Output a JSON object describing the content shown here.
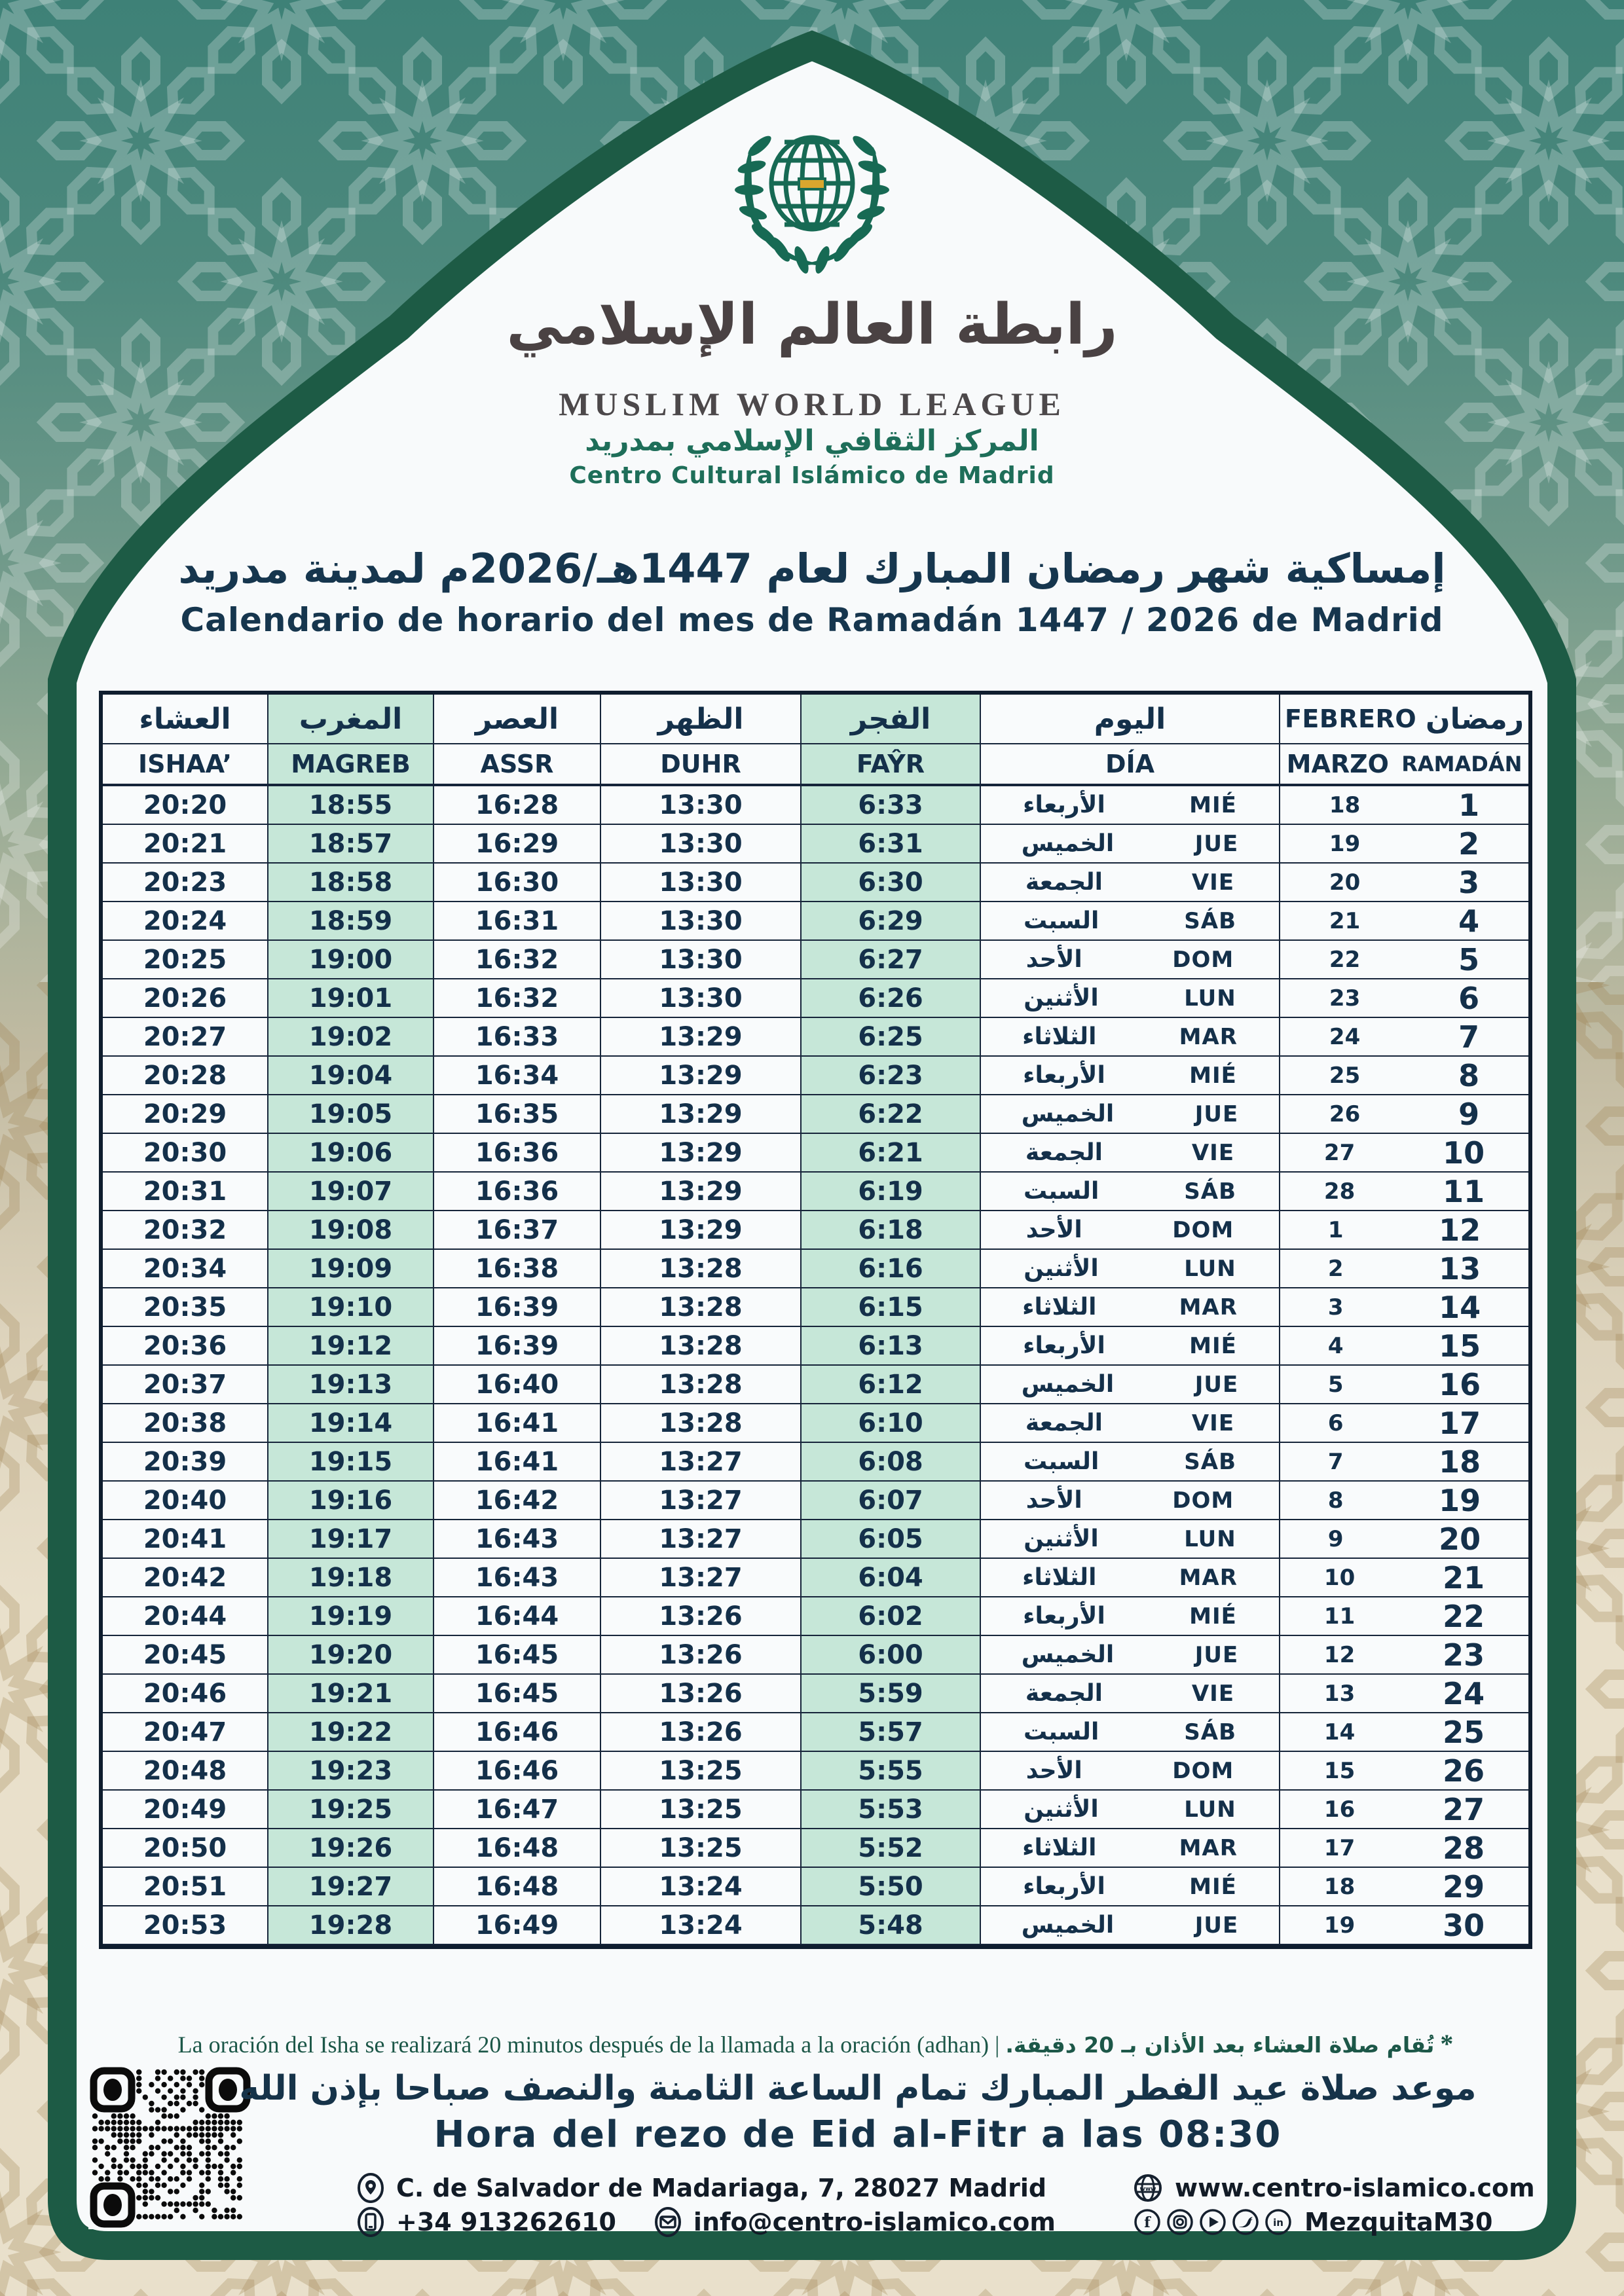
{
  "org": {
    "calligraphy_ar": "رابطة العالم الإسلامي",
    "name_en": "MUSLIM WORLD LEAGUE",
    "center_ar": "المركز الثقافي الإسلامي بمدريد",
    "center_es": "Centro Cultural Islámico de Madrid"
  },
  "title": {
    "ar": "إمساكية شهر رمضان المبارك لعام 1447هـ/2026م لمدينة مدريد",
    "es": "Calendario de horario del mes de Ramadán 1447 / 2026  de Madrid"
  },
  "table": {
    "headers": {
      "ishaa_ar": "العشاء",
      "magreb_ar": "المغرب",
      "assr_ar": "العصر",
      "duhr_ar": "الظهر",
      "fayr_ar": "الفجر",
      "day_ar": "اليوم",
      "month_top": "FEBRERO",
      "ramadan_ar": "رمضان",
      "ishaa_la": "ISHAA’",
      "magreb_la": "MAGREB",
      "assr_la": "ASSR",
      "duhr_la": "DUHR",
      "fayr_la": "FAŶR",
      "day_la": "DÍA",
      "month_bottom": "MARZO",
      "ramadan_la": "RAMADÁN"
    },
    "rows": [
      {
        "ishaa": "20:20",
        "magreb": "18:55",
        "assr": "16:28",
        "duhr": "13:30",
        "fayr": "6:33",
        "day_ar": "الأربعاء",
        "day_es": "MIÉ",
        "date": "18",
        "ramadan": "1"
      },
      {
        "ishaa": "20:21",
        "magreb": "18:57",
        "assr": "16:29",
        "duhr": "13:30",
        "fayr": "6:31",
        "day_ar": "الخميس",
        "day_es": "JUE",
        "date": "19",
        "ramadan": "2"
      },
      {
        "ishaa": "20:23",
        "magreb": "18:58",
        "assr": "16:30",
        "duhr": "13:30",
        "fayr": "6:30",
        "day_ar": "الجمعة",
        "day_es": "VIE",
        "date": "20",
        "ramadan": "3"
      },
      {
        "ishaa": "20:24",
        "magreb": "18:59",
        "assr": "16:31",
        "duhr": "13:30",
        "fayr": "6:29",
        "day_ar": "السبت",
        "day_es": "SÁB",
        "date": "21",
        "ramadan": "4"
      },
      {
        "ishaa": "20:25",
        "magreb": "19:00",
        "assr": "16:32",
        "duhr": "13:30",
        "fayr": "6:27",
        "day_ar": "الأحد",
        "day_es": "DOM",
        "date": "22",
        "ramadan": "5"
      },
      {
        "ishaa": "20:26",
        "magreb": "19:01",
        "assr": "16:32",
        "duhr": "13:30",
        "fayr": "6:26",
        "day_ar": "الأثنين",
        "day_es": "LUN",
        "date": "23",
        "ramadan": "6"
      },
      {
        "ishaa": "20:27",
        "magreb": "19:02",
        "assr": "16:33",
        "duhr": "13:29",
        "fayr": "6:25",
        "day_ar": "الثلاثاء",
        "day_es": "MAR",
        "date": "24",
        "ramadan": "7"
      },
      {
        "ishaa": "20:28",
        "magreb": "19:04",
        "assr": "16:34",
        "duhr": "13:29",
        "fayr": "6:23",
        "day_ar": "الأربعاء",
        "day_es": "MIÉ",
        "date": "25",
        "ramadan": "8"
      },
      {
        "ishaa": "20:29",
        "magreb": "19:05",
        "assr": "16:35",
        "duhr": "13:29",
        "fayr": "6:22",
        "day_ar": "الخميس",
        "day_es": "JUE",
        "date": "26",
        "ramadan": "9"
      },
      {
        "ishaa": "20:30",
        "magreb": "19:06",
        "assr": "16:36",
        "duhr": "13:29",
        "fayr": "6:21",
        "day_ar": "الجمعة",
        "day_es": "VIE",
        "date": "27",
        "ramadan": "10"
      },
      {
        "ishaa": "20:31",
        "magreb": "19:07",
        "assr": "16:36",
        "duhr": "13:29",
        "fayr": "6:19",
        "day_ar": "السبت",
        "day_es": "SÁB",
        "date": "28",
        "ramadan": "11"
      },
      {
        "ishaa": "20:32",
        "magreb": "19:08",
        "assr": "16:37",
        "duhr": "13:29",
        "fayr": "6:18",
        "day_ar": "الأحد",
        "day_es": "DOM",
        "date": "1",
        "ramadan": "12"
      },
      {
        "ishaa": "20:34",
        "magreb": "19:09",
        "assr": "16:38",
        "duhr": "13:28",
        "fayr": "6:16",
        "day_ar": "الأثنين",
        "day_es": "LUN",
        "date": "2",
        "ramadan": "13"
      },
      {
        "ishaa": "20:35",
        "magreb": "19:10",
        "assr": "16:39",
        "duhr": "13:28",
        "fayr": "6:15",
        "day_ar": "الثلاثاء",
        "day_es": "MAR",
        "date": "3",
        "ramadan": "14"
      },
      {
        "ishaa": "20:36",
        "magreb": "19:12",
        "assr": "16:39",
        "duhr": "13:28",
        "fayr": "6:13",
        "day_ar": "الأربعاء",
        "day_es": "MIÉ",
        "date": "4",
        "ramadan": "15"
      },
      {
        "ishaa": "20:37",
        "magreb": "19:13",
        "assr": "16:40",
        "duhr": "13:28",
        "fayr": "6:12",
        "day_ar": "الخميس",
        "day_es": "JUE",
        "date": "5",
        "ramadan": "16"
      },
      {
        "ishaa": "20:38",
        "magreb": "19:14",
        "assr": "16:41",
        "duhr": "13:28",
        "fayr": "6:10",
        "day_ar": "الجمعة",
        "day_es": "VIE",
        "date": "6",
        "ramadan": "17"
      },
      {
        "ishaa": "20:39",
        "magreb": "19:15",
        "assr": "16:41",
        "duhr": "13:27",
        "fayr": "6:08",
        "day_ar": "السبت",
        "day_es": "SÁB",
        "date": "7",
        "ramadan": "18"
      },
      {
        "ishaa": "20:40",
        "magreb": "19:16",
        "assr": "16:42",
        "duhr": "13:27",
        "fayr": "6:07",
        "day_ar": "الأحد",
        "day_es": "DOM",
        "date": "8",
        "ramadan": "19"
      },
      {
        "ishaa": "20:41",
        "magreb": "19:17",
        "assr": "16:43",
        "duhr": "13:27",
        "fayr": "6:05",
        "day_ar": "الأثنين",
        "day_es": "LUN",
        "date": "9",
        "ramadan": "20"
      },
      {
        "ishaa": "20:42",
        "magreb": "19:18",
        "assr": "16:43",
        "duhr": "13:27",
        "fayr": "6:04",
        "day_ar": "الثلاثاء",
        "day_es": "MAR",
        "date": "10",
        "ramadan": "21"
      },
      {
        "ishaa": "20:44",
        "magreb": "19:19",
        "assr": "16:44",
        "duhr": "13:26",
        "fayr": "6:02",
        "day_ar": "الأربعاء",
        "day_es": "MIÉ",
        "date": "11",
        "ramadan": "22"
      },
      {
        "ishaa": "20:45",
        "magreb": "19:20",
        "assr": "16:45",
        "duhr": "13:26",
        "fayr": "6:00",
        "day_ar": "الخميس",
        "day_es": "JUE",
        "date": "12",
        "ramadan": "23"
      },
      {
        "ishaa": "20:46",
        "magreb": "19:21",
        "assr": "16:45",
        "duhr": "13:26",
        "fayr": "5:59",
        "day_ar": "الجمعة",
        "day_es": "VIE",
        "date": "13",
        "ramadan": "24"
      },
      {
        "ishaa": "20:47",
        "magreb": "19:22",
        "assr": "16:46",
        "duhr": "13:26",
        "fayr": "5:57",
        "day_ar": "السبت",
        "day_es": "SÁB",
        "date": "14",
        "ramadan": "25"
      },
      {
        "ishaa": "20:48",
        "magreb": "19:23",
        "assr": "16:46",
        "duhr": "13:25",
        "fayr": "5:55",
        "day_ar": "الأحد",
        "day_es": "DOM",
        "date": "15",
        "ramadan": "26"
      },
      {
        "ishaa": "20:49",
        "magreb": "19:25",
        "assr": "16:47",
        "duhr": "13:25",
        "fayr": "5:53",
        "day_ar": "الأثنين",
        "day_es": "LUN",
        "date": "16",
        "ramadan": "27"
      },
      {
        "ishaa": "20:50",
        "magreb": "19:26",
        "assr": "16:48",
        "duhr": "13:25",
        "fayr": "5:52",
        "day_ar": "الثلاثاء",
        "day_es": "MAR",
        "date": "17",
        "ramadan": "28"
      },
      {
        "ishaa": "20:51",
        "magreb": "19:27",
        "assr": "16:48",
        "duhr": "13:24",
        "fayr": "5:50",
        "day_ar": "الأربعاء",
        "day_es": "MIÉ",
        "date": "18",
        "ramadan": "29"
      },
      {
        "ishaa": "20:53",
        "magreb": "19:28",
        "assr": "16:49",
        "duhr": "13:24",
        "fayr": "5:48",
        "day_ar": "الخميس",
        "day_es": "JUE",
        "date": "19",
        "ramadan": "30"
      }
    ]
  },
  "footnote": {
    "star": "*",
    "ar": "تُقام صلاة العشاء بعد الأذان بـ 20 دقيقة.",
    "separator": "|",
    "es": "La oración del Isha se realizará 20 minutos después de la llamada a la oración  (adhan)"
  },
  "eid": {
    "ar": "موعد صلاة عيد الفطر المبارك  تمام الساعة الثامنة والنصف صباحا بإذن الله",
    "es": "Hora del rezo de Eid al-Fitr a las 08:30"
  },
  "contact": {
    "address": "C. de Salvador de Madariaga, 7, 28027 Madrid",
    "phone": "+34 913262610",
    "email": "info@centro-islamico.com",
    "website": "www.centro-islamico.com",
    "social_handle": "MezquitaM30",
    "social_icons": [
      "facebook-icon",
      "instagram-icon",
      "youtube-icon",
      "twitter-icon",
      "linkedin-icon"
    ]
  },
  "colors": {
    "frame_green": "#1d5b45",
    "logo_green": "#176a54",
    "navy": "#16364e",
    "mint": "#c6e7d8",
    "gold": "#d9a62e",
    "teal_bg": "#3e8177",
    "beige_bg": "#e9e0cb"
  }
}
